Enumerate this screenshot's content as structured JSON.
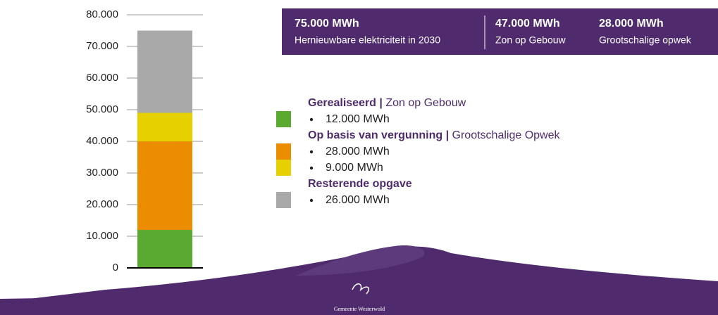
{
  "chart_data": {
    "type": "stacked-bar",
    "categories": [
      null
    ],
    "series": [
      {
        "color": "#5aaa32",
        "values": [
          12000
        ],
        "value_labels": [
          "12.000 MWh"
        ]
      },
      {
        "color": "#ec8c00",
        "values": [
          28000
        ],
        "value_labels": [
          "28.000 MWh"
        ]
      },
      {
        "color": "#e6d000",
        "values": [
          9000
        ],
        "value_labels": [
          "9.000 MWh"
        ]
      },
      {
        "color": "#a9a9a9",
        "values": [
          26000
        ],
        "value_labels": [
          "26.000 MWh"
        ]
      }
    ],
    "ylim": [
      0,
      80000
    ],
    "yticks": [
      0,
      {
        "value": 10000,
        "label": "10.000"
      },
      {
        "value": 20000,
        "label": "20.000"
      },
      {
        "value": 30000,
        "label": "30.000"
      },
      {
        "value": 40000,
        "label": "40.000"
      },
      {
        "value": 50000,
        "label": "50.000"
      },
      {
        "value": 60000,
        "label": "60.000"
      },
      {
        "value": 70000,
        "label": "70.000"
      },
      {
        "value": 80000,
        "label": "80.000"
      }
    ],
    "grid": true,
    "legend_groups": [
      {
        "title": "Gerealiseerd |",
        "subtitle": "Zon op Gebouw"
      },
      {
        "title": "Op basis van vergunning |",
        "subtitle": "Grootschalige Opwek"
      },
      {
        "title": "Resterende opgave"
      }
    ]
  },
  "summary": [
    {
      "value": "75.000 MWh",
      "label": "Hernieuwbare elektriciteit in 2030"
    },
    {
      "value": "47.000 MWh",
      "label": "Zon op Gebouw"
    },
    {
      "value": "28.000 MWh",
      "label": "Grootschalige opwek"
    }
  ],
  "footer": {
    "logo_text": "Gemeente Westerwold"
  }
}
